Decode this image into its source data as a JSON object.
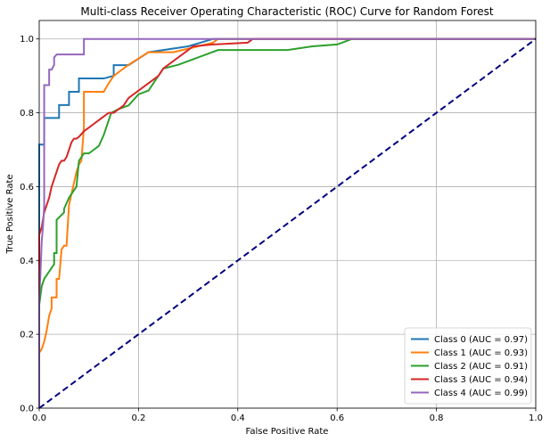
{
  "chart_data": {
    "type": "line",
    "title": "Multi-class Receiver Operating Characteristic (ROC) Curve for Random Forest",
    "xlabel": "False Positive Rate",
    "ylabel": "True Positive Rate",
    "xlim": [
      0,
      1
    ],
    "ylim": [
      0,
      1.05
    ],
    "xticks": [
      "0.0",
      "0.2",
      "0.4",
      "0.6",
      "0.8",
      "1.0"
    ],
    "yticks": [
      "0.0",
      "0.2",
      "0.4",
      "0.6",
      "0.8",
      "1.0"
    ],
    "grid": true,
    "legend_position": "lower-right",
    "series": [
      {
        "name": "Class 0 (AUC = 0.97)",
        "color": "#1f77b4",
        "x": [
          0,
          0,
          0.01,
          0.01,
          0.04,
          0.04,
          0.06,
          0.06,
          0.08,
          0.08,
          0.13,
          0.15,
          0.15,
          0.18,
          0.22,
          0.3,
          0.35,
          1.0
        ],
        "y": [
          0,
          0.714,
          0.714,
          0.786,
          0.786,
          0.821,
          0.821,
          0.857,
          0.857,
          0.893,
          0.893,
          0.9,
          0.929,
          0.929,
          0.964,
          0.98,
          1.0,
          1.0
        ]
      },
      {
        "name": "Class 1 (AUC = 0.93)",
        "color": "#ff7f0e",
        "x": [
          0,
          0,
          0.005,
          0.01,
          0.015,
          0.02,
          0.025,
          0.025,
          0.03,
          0.035,
          0.035,
          0.04,
          0.045,
          0.05,
          0.055,
          0.06,
          0.065,
          0.07,
          0.075,
          0.08,
          0.085,
          0.09,
          0.09,
          0.1,
          0.13,
          0.14,
          0.15,
          0.16,
          0.18,
          0.22,
          0.27,
          0.32,
          0.35,
          0.36,
          1.0
        ],
        "y": [
          0,
          0.15,
          0.16,
          0.18,
          0.21,
          0.25,
          0.27,
          0.3,
          0.3,
          0.3,
          0.35,
          0.35,
          0.43,
          0.44,
          0.44,
          0.55,
          0.58,
          0.61,
          0.64,
          0.66,
          0.67,
          0.76,
          0.857,
          0.857,
          0.857,
          0.88,
          0.9,
          0.91,
          0.93,
          0.964,
          0.964,
          0.98,
          0.99,
          1.0,
          1.0
        ]
      },
      {
        "name": "Class 2 (AUC = 0.91)",
        "color": "#2ca02c",
        "x": [
          0,
          0,
          0.005,
          0.01,
          0.015,
          0.02,
          0.03,
          0.03,
          0.035,
          0.035,
          0.05,
          0.05,
          0.06,
          0.065,
          0.07,
          0.075,
          0.08,
          0.085,
          0.09,
          0.1,
          0.11,
          0.12,
          0.13,
          0.14,
          0.145,
          0.16,
          0.18,
          0.2,
          0.22,
          0.25,
          0.28,
          0.32,
          0.34,
          0.36,
          0.5,
          0.55,
          0.6,
          0.63,
          1.0
        ],
        "y": [
          0,
          0.28,
          0.33,
          0.35,
          0.36,
          0.37,
          0.39,
          0.42,
          0.42,
          0.51,
          0.53,
          0.54,
          0.57,
          0.58,
          0.59,
          0.6,
          0.67,
          0.68,
          0.69,
          0.69,
          0.7,
          0.71,
          0.74,
          0.78,
          0.8,
          0.81,
          0.82,
          0.85,
          0.86,
          0.92,
          0.93,
          0.95,
          0.96,
          0.97,
          0.97,
          0.98,
          0.985,
          1.0,
          1.0
        ]
      },
      {
        "name": "Class 3 (AUC = 0.94)",
        "color": "#d62728",
        "x": [
          0,
          0,
          0.005,
          0.01,
          0.015,
          0.02,
          0.025,
          0.03,
          0.035,
          0.04,
          0.045,
          0.05,
          0.055,
          0.06,
          0.065,
          0.07,
          0.075,
          0.08,
          0.09,
          0.1,
          0.11,
          0.12,
          0.13,
          0.14,
          0.15,
          0.16,
          0.17,
          0.18,
          0.2,
          0.22,
          0.24,
          0.25,
          0.27,
          0.29,
          0.31,
          0.35,
          0.42,
          0.43,
          1.0
        ],
        "y": [
          0,
          0.47,
          0.49,
          0.53,
          0.55,
          0.57,
          0.6,
          0.62,
          0.64,
          0.66,
          0.67,
          0.67,
          0.68,
          0.7,
          0.72,
          0.73,
          0.73,
          0.735,
          0.75,
          0.76,
          0.77,
          0.78,
          0.79,
          0.8,
          0.8,
          0.81,
          0.82,
          0.84,
          0.86,
          0.88,
          0.9,
          0.92,
          0.94,
          0.96,
          0.98,
          0.985,
          0.99,
          1.0,
          1.0
        ]
      },
      {
        "name": "Class 4 (AUC = 0.99)",
        "color": "#9467bd",
        "x": [
          0,
          0,
          0.002,
          0.005,
          0.008,
          0.01,
          0.01,
          0.02,
          0.02,
          0.025,
          0.03,
          0.03,
          0.035,
          0.04,
          0.04,
          0.09,
          0.09,
          0.3,
          0.35,
          1.0
        ],
        "y": [
          0,
          0.3,
          0.35,
          0.45,
          0.5,
          0.55,
          0.875,
          0.875,
          0.917,
          0.917,
          0.93,
          0.95,
          0.958,
          0.958,
          0.958,
          0.958,
          1.0,
          1.0,
          1.0,
          1.0
        ]
      }
    ],
    "reference_line": {
      "x": [
        0,
        1
      ],
      "y": [
        0,
        1
      ],
      "color": "#000080",
      "style": "dashed"
    }
  }
}
